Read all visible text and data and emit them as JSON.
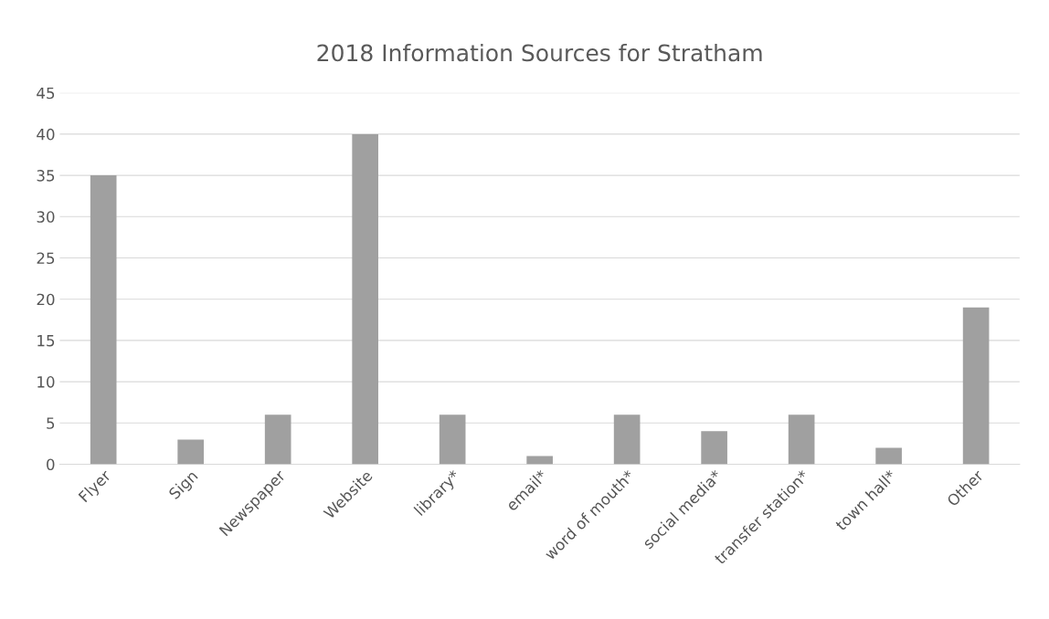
{
  "chart_data": {
    "type": "bar",
    "title": "2018 Information Sources for Stratham",
    "categories": [
      "Flyer",
      "Sign",
      "Newspaper",
      "Website",
      "library*",
      "email*",
      "word of mouth*",
      "social media*",
      "transfer station*",
      "town hall*",
      "Other"
    ],
    "values": [
      35,
      3,
      6,
      40,
      6,
      1,
      6,
      4,
      6,
      2,
      19
    ],
    "color": "#a0a0a0",
    "ylim": [
      0,
      45
    ],
    "yticks": [
      0,
      5,
      10,
      15,
      20,
      25,
      30,
      35,
      40,
      45
    ],
    "grid": "y"
  }
}
